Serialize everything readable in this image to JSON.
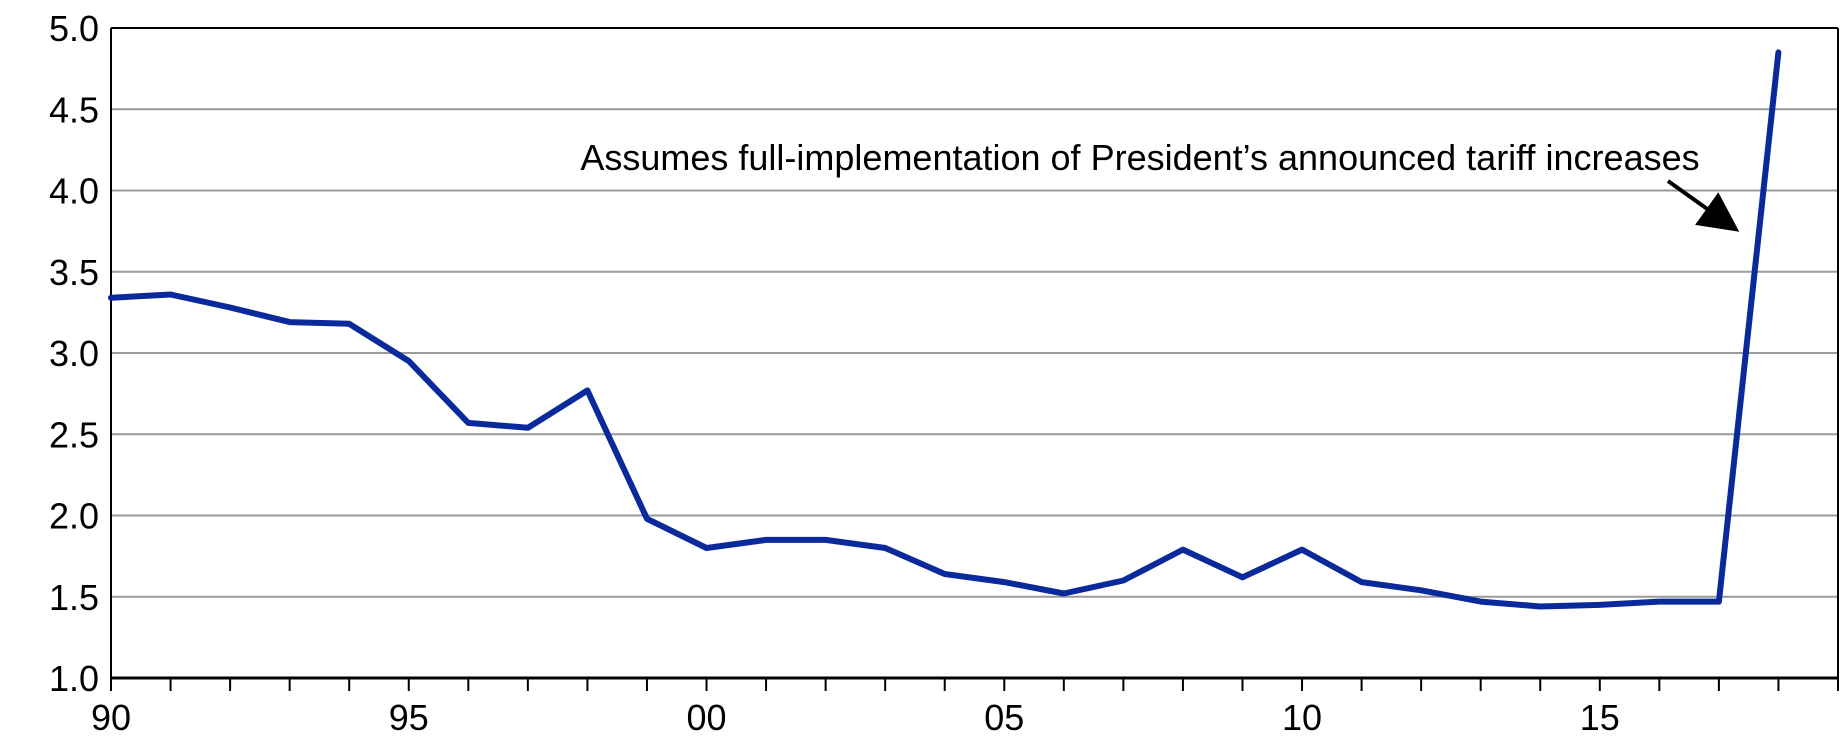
{
  "chart_data": {
    "type": "line",
    "title": "",
    "xlabel": "",
    "ylabel": "",
    "xlim": [
      1990,
      2019
    ],
    "ylim": [
      1.0,
      5.0
    ],
    "y_ticks": [
      1.0,
      1.5,
      2.0,
      2.5,
      3.0,
      3.5,
      4.0,
      4.5,
      5.0
    ],
    "y_tick_labels": [
      "1.0",
      "1.5",
      "2.0",
      "2.5",
      "3.0",
      "3.5",
      "4.0",
      "4.5",
      "5.0"
    ],
    "x_major_ticks": [
      1990,
      1995,
      2000,
      2005,
      2010,
      2015
    ],
    "x_tick_labels": [
      "90",
      "95",
      "00",
      "05",
      "10",
      "15"
    ],
    "grid": "horizontal",
    "legend": "none",
    "series": [
      {
        "color": "#0a2a9c",
        "x": [
          1990,
          1991,
          1992,
          1993,
          1994,
          1995,
          1996,
          1997,
          1998,
          1999,
          2000,
          2001,
          2002,
          2003,
          2004,
          2005,
          2006,
          2007,
          2008,
          2009,
          2010,
          2011,
          2012,
          2013,
          2014,
          2015,
          2016,
          2017,
          2018
        ],
        "values": [
          3.34,
          3.36,
          3.28,
          3.19,
          3.18,
          2.95,
          2.57,
          2.54,
          2.77,
          1.98,
          1.8,
          1.85,
          1.85,
          1.8,
          1.64,
          1.59,
          1.52,
          1.6,
          1.79,
          1.62,
          1.79,
          1.59,
          1.54,
          1.47,
          1.44,
          1.45,
          1.47,
          1.47,
          4.85
        ]
      }
    ],
    "annotations": [
      {
        "text": "Assumes full-implementation of President’s announced tariff increases",
        "arrow_to": {
          "x": 2017.3,
          "y": 3.75
        }
      }
    ]
  }
}
